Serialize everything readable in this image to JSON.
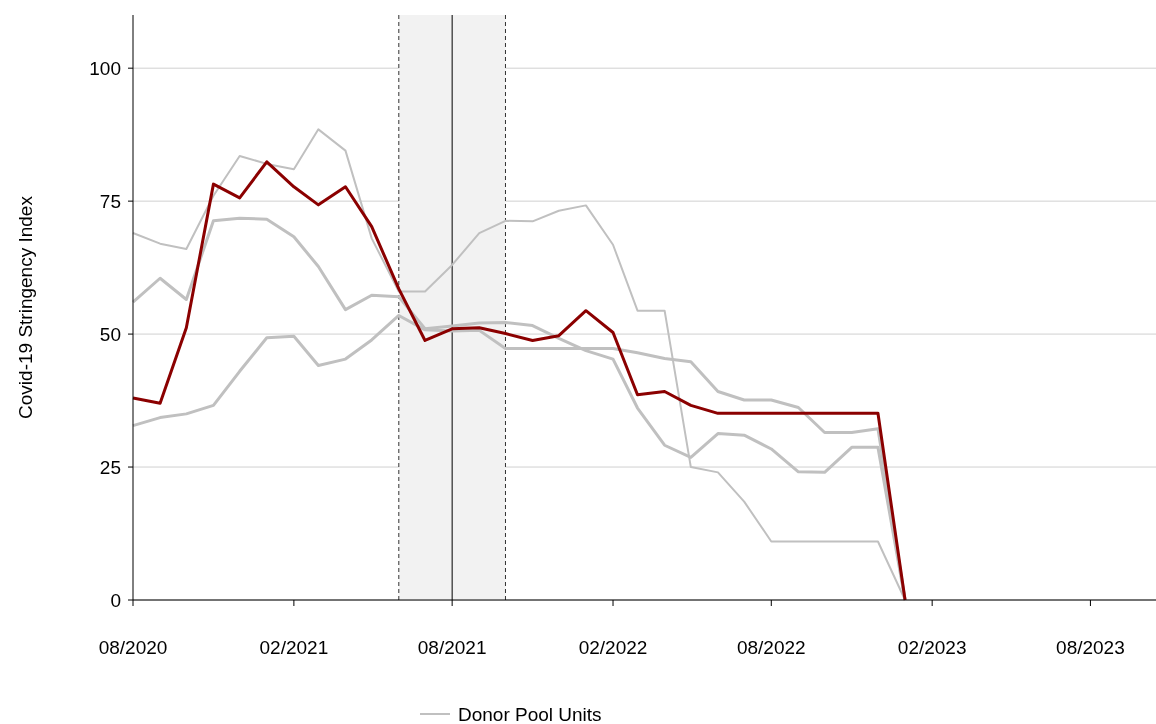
{
  "chart_data": {
    "type": "line",
    "ylabel": "Covid-19 Stringency Index",
    "x": [
      "2020-08",
      "2020-09",
      "2020-10",
      "2020-11",
      "2020-12",
      "2021-01",
      "2021-02",
      "2021-03",
      "2021-04",
      "2021-05",
      "2021-06",
      "2021-07",
      "2021-08",
      "2021-09",
      "2021-10",
      "2021-11",
      "2021-12",
      "2022-01",
      "2022-02",
      "2022-03",
      "2022-04",
      "2022-05",
      "2022-06",
      "2022-07",
      "2022-08",
      "2022-09",
      "2022-10",
      "2022-11",
      "2022-12",
      "2023-01"
    ],
    "series": [
      {
        "name": "Donor Pool Units",
        "color": "#c0c0c0",
        "values": [
          69,
          67,
          66,
          76,
          83.5,
          82,
          81,
          88.5,
          84.5,
          68,
          58,
          58,
          63,
          69,
          71.3,
          71.2,
          73.2,
          74.2,
          66.8,
          54.4,
          54.4,
          25,
          24,
          18.5,
          11,
          11,
          11,
          11,
          11,
          0
        ]
      },
      {
        "color": "#c0c0c0",
        "values": [
          56,
          60.5,
          56.5,
          71.3,
          71.8,
          71.6,
          68.3,
          62.7,
          54.6,
          57.3,
          57,
          51,
          51.5,
          52.1,
          52.2,
          51.6,
          49.2,
          46.9,
          45.3,
          36.1,
          29.1,
          26.8,
          31.3,
          31,
          28.4,
          24.1,
          24,
          28.7,
          28.7,
          0
        ]
      },
      {
        "color": "#c0c0c0",
        "values": [
          32.8,
          34.3,
          35,
          36.6,
          43,
          49.3,
          49.6,
          44.1,
          45.3,
          48.9,
          53.5,
          50.8,
          50.6,
          50.7,
          47.3,
          47.3,
          47.3,
          47.3,
          47.3,
          46.5,
          45.4,
          44.8,
          39.2,
          37.6,
          37.6,
          36.2,
          31.5,
          31.5,
          32.2,
          0
        ]
      },
      {
        "color": "#8b0000",
        "values": [
          38,
          37,
          51.2,
          78.2,
          75.6,
          82.4,
          77.7,
          74.3,
          77.7,
          70.2,
          58.5,
          48.8,
          51,
          51.2,
          50.1,
          48.8,
          49.7,
          54.4,
          50.3,
          38.6,
          39.2,
          36.6,
          35.1,
          35.1,
          35.1,
          35.1,
          35.1,
          35.1,
          35.1,
          0
        ]
      }
    ],
    "xlim": [
      "2020-08",
      "2023-10-15"
    ],
    "xticks": [
      {
        "value": "2020-08",
        "label": "08/2020"
      },
      {
        "value": "2021-02",
        "label": "02/2021"
      },
      {
        "value": "2021-08",
        "label": "08/2021"
      },
      {
        "value": "2022-02",
        "label": "02/2022"
      },
      {
        "value": "2022-08",
        "label": "08/2022"
      },
      {
        "value": "2023-02",
        "label": "02/2023"
      },
      {
        "value": "2023-08",
        "label": "08/2023"
      }
    ],
    "ylim": [
      0,
      110
    ],
    "yticks": [
      0,
      25,
      50,
      75,
      100
    ],
    "bands": [
      {
        "axis": "x",
        "from": "2021-06",
        "to": "2021-10",
        "color": "#f2f2f2"
      }
    ],
    "ref_lines": [
      {
        "axis": "x",
        "value": "2021-06",
        "color": "#333333",
        "line_style": "dashed"
      },
      {
        "axis": "x",
        "value": "2021-08",
        "color": "#000000",
        "line_style": "solid"
      },
      {
        "axis": "x",
        "value": "2021-10",
        "color": "#333333",
        "line_style": "dashed"
      }
    ],
    "grid": "y",
    "legend": "bottom",
    "line_style": "solid",
    "marker": "none"
  }
}
